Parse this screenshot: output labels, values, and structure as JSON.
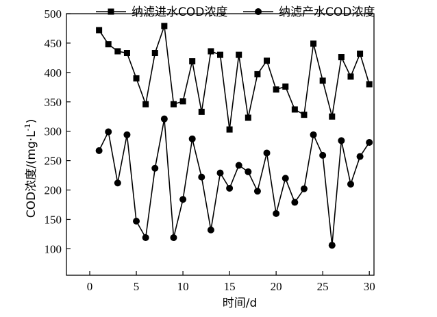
{
  "chart_data": {
    "type": "line",
    "xlabel": "时间/d",
    "ylabel_main": "COD浓度/(mg·L",
    "ylabel_sup": "-1",
    "ylabel_close": ")",
    "xlim": [
      -2.5,
      30.5
    ],
    "ylim": [
      55,
      500
    ],
    "xticks": [
      0,
      5,
      10,
      15,
      20,
      25,
      30
    ],
    "yticks": [
      100,
      150,
      200,
      250,
      300,
      350,
      400,
      450,
      500
    ],
    "grid": false,
    "legend_position": "top",
    "series": [
      {
        "name": "纳滤进水COD浓度",
        "marker": "square",
        "x": [
          1,
          2,
          3,
          4,
          5,
          6,
          7,
          8,
          9,
          10,
          11,
          12,
          13,
          14,
          15,
          16,
          17,
          18,
          19,
          20,
          21,
          22,
          23,
          24,
          25,
          26,
          27,
          28,
          29,
          30
        ],
        "values": [
          472,
          448,
          436,
          433,
          390,
          346,
          433,
          479,
          346,
          351,
          419,
          333,
          436,
          430,
          303,
          430,
          323,
          397,
          420,
          371,
          376,
          337,
          328,
          449,
          386,
          325,
          426,
          393,
          432,
          380
        ]
      },
      {
        "name": "纳滤产水COD浓度",
        "marker": "circle",
        "x": [
          1,
          2,
          3,
          4,
          5,
          6,
          7,
          8,
          9,
          10,
          11,
          12,
          13,
          14,
          15,
          16,
          17,
          18,
          19,
          20,
          21,
          22,
          23,
          24,
          25,
          26,
          27,
          28,
          29,
          30
        ],
        "values": [
          267,
          299,
          212,
          294,
          147,
          119,
          237,
          321,
          119,
          184,
          287,
          222,
          132,
          229,
          203,
          242,
          231,
          198,
          263,
          160,
          220,
          179,
          202,
          294,
          259,
          106,
          284,
          210,
          257,
          281
        ]
      }
    ]
  }
}
